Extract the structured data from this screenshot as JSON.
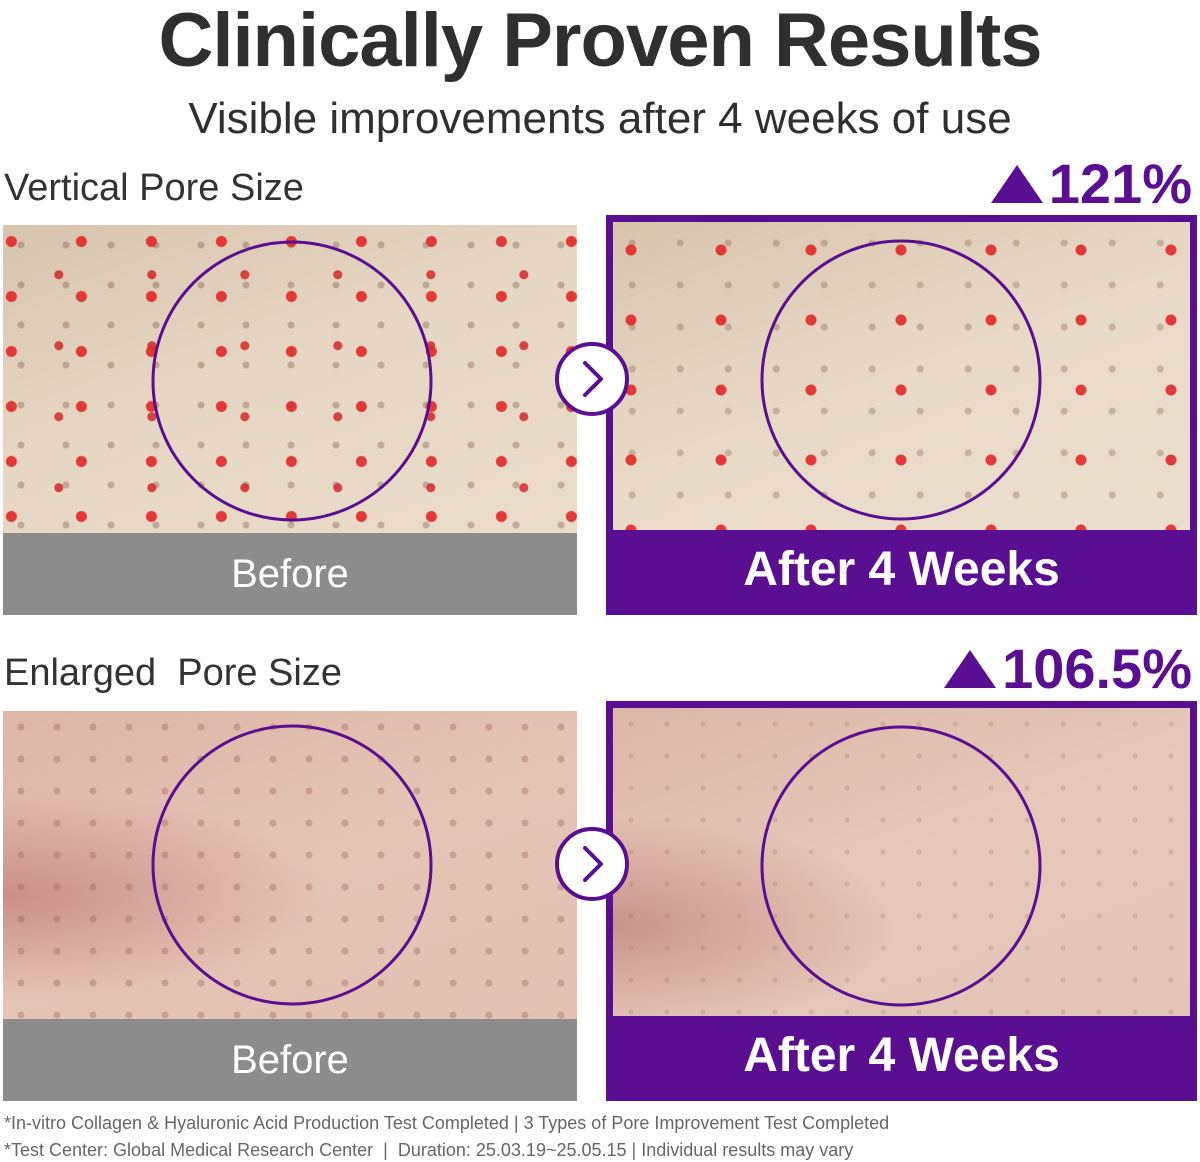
{
  "header": {
    "title": "Clinically Proven Results",
    "subtitle": "Visible improvements after 4 weeks of use"
  },
  "sections": [
    {
      "label": "Vertical Pore Size",
      "improvement": "121%",
      "before_label": "Before",
      "after_label": "After 4 Weeks"
    },
    {
      "label": "Enlarged  Pore Size",
      "improvement": "106.5%",
      "before_label": "Before",
      "after_label": "After 4 Weeks"
    }
  ],
  "footnotes": [
    "*In-vitro Collagen & Hyaluronic Acid Production Test Completed | 3 Types of Pore Improvement Test Completed",
    "*Test Center: Global Medical Research Center  |  Duration: 25.03.19~25.05.15 | Individual results may vary"
  ]
}
